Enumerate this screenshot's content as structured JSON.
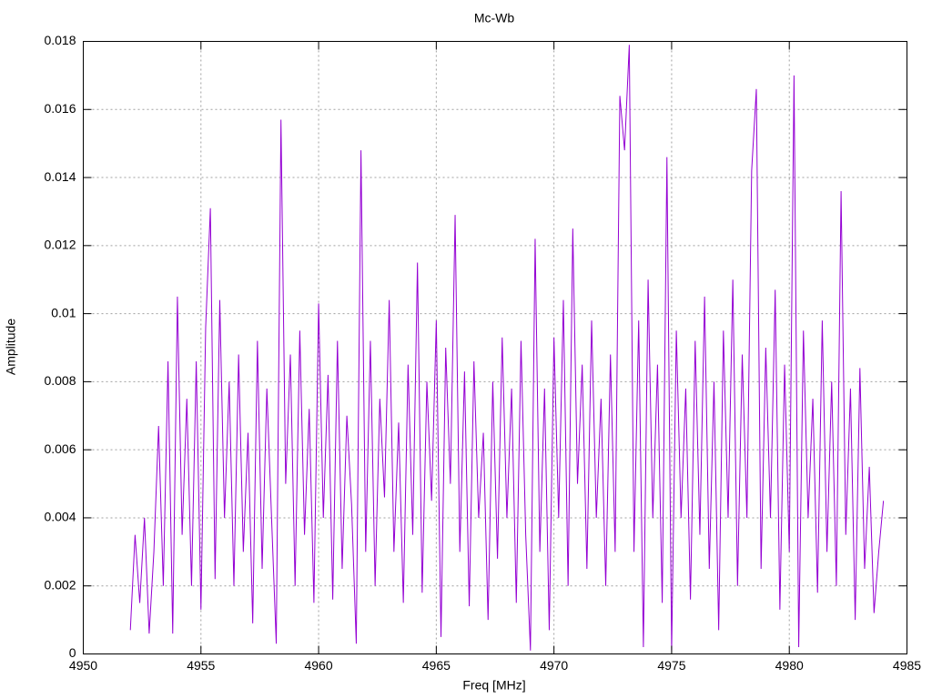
{
  "chart_data": {
    "type": "line",
    "title": "Mc-Wb",
    "x_label": "Freq [MHz]",
    "y_label": "Amplitude",
    "xlim": [
      4950,
      4985
    ],
    "xticks": [
      4950,
      4955,
      4960,
      4965,
      4970,
      4975,
      4980,
      4985
    ],
    "ylim": [
      0,
      0.018
    ],
    "yticks": [
      0,
      0.002,
      0.004,
      0.006,
      0.008,
      0.01,
      0.012,
      0.014,
      0.016,
      0.018
    ],
    "grid": true,
    "x": [
      4952.0,
      4952.2,
      4952.4,
      4952.6,
      4952.8,
      4953.0,
      4953.2,
      4953.4,
      4953.6,
      4953.8,
      4954.0,
      4954.2,
      4954.4,
      4954.6,
      4954.8,
      4955.0,
      4955.2,
      4955.4,
      4955.6,
      4955.8,
      4956.0,
      4956.2,
      4956.4,
      4956.6,
      4956.8,
      4957.0,
      4957.2,
      4957.4,
      4957.6,
      4957.8,
      4958.0,
      4958.2,
      4958.4,
      4958.6,
      4958.8,
      4959.0,
      4959.2,
      4959.4,
      4959.6,
      4959.8,
      4960.0,
      4960.2,
      4960.4,
      4960.6,
      4960.8,
      4961.0,
      4961.2,
      4961.4,
      4961.6,
      4961.8,
      4962.0,
      4962.2,
      4962.4,
      4962.6,
      4962.8,
      4963.0,
      4963.2,
      4963.4,
      4963.6,
      4963.8,
      4964.0,
      4964.2,
      4964.4,
      4964.6,
      4964.8,
      4965.0,
      4965.2,
      4965.4,
      4965.6,
      4965.8,
      4966.0,
      4966.2,
      4966.4,
      4966.6,
      4966.8,
      4967.0,
      4967.2,
      4967.4,
      4967.6,
      4967.8,
      4968.0,
      4968.2,
      4968.4,
      4968.6,
      4968.8,
      4969.0,
      4969.2,
      4969.4,
      4969.6,
      4969.8,
      4970.0,
      4970.2,
      4970.4,
      4970.6,
      4970.8,
      4971.0,
      4971.2,
      4971.4,
      4971.6,
      4971.8,
      4972.0,
      4972.2,
      4972.4,
      4972.6,
      4972.8,
      4973.0,
      4973.2,
      4973.4,
      4973.6,
      4973.8,
      4974.0,
      4974.2,
      4974.4,
      4974.6,
      4974.8,
      4975.0,
      4975.2,
      4975.4,
      4975.6,
      4975.8,
      4976.0,
      4976.2,
      4976.4,
      4976.6,
      4976.8,
      4977.0,
      4977.2,
      4977.4,
      4977.6,
      4977.8,
      4978.0,
      4978.2,
      4978.4,
      4978.6,
      4978.8,
      4979.0,
      4979.2,
      4979.4,
      4979.6,
      4979.8,
      4980.0,
      4980.2,
      4980.4,
      4980.6,
      4980.8,
      4981.0,
      4981.2,
      4981.4,
      4981.6,
      4981.8,
      4982.0,
      4982.2,
      4982.4,
      4982.6,
      4982.8,
      4983.0,
      4983.2,
      4983.4,
      4983.6,
      4983.8,
      4984.0
    ],
    "series": [
      {
        "color": "#9400d3",
        "values": [
          0.0007,
          0.0035,
          0.0015,
          0.004,
          0.0006,
          0.003,
          0.0067,
          0.002,
          0.0086,
          0.0006,
          0.0105,
          0.0035,
          0.0075,
          0.002,
          0.0086,
          0.0013,
          0.0096,
          0.0131,
          0.0022,
          0.0104,
          0.004,
          0.008,
          0.002,
          0.0088,
          0.003,
          0.0065,
          0.0009,
          0.0092,
          0.0025,
          0.0078,
          0.004,
          0.0003,
          0.0157,
          0.005,
          0.0088,
          0.002,
          0.0095,
          0.0035,
          0.0072,
          0.0015,
          0.0103,
          0.004,
          0.0082,
          0.0016,
          0.0092,
          0.0025,
          0.007,
          0.0044,
          0.0003,
          0.0148,
          0.003,
          0.0092,
          0.002,
          0.0075,
          0.0046,
          0.0104,
          0.003,
          0.0068,
          0.0015,
          0.0085,
          0.0035,
          0.0115,
          0.0018,
          0.008,
          0.0045,
          0.0098,
          0.0005,
          0.009,
          0.005,
          0.0129,
          0.003,
          0.0083,
          0.0014,
          0.0086,
          0.004,
          0.0065,
          0.001,
          0.008,
          0.0028,
          0.0093,
          0.004,
          0.0078,
          0.0015,
          0.0092,
          0.0035,
          0.0001,
          0.0122,
          0.003,
          0.0078,
          0.0007,
          0.0093,
          0.004,
          0.0104,
          0.002,
          0.0125,
          0.005,
          0.0085,
          0.0025,
          0.0098,
          0.004,
          0.0075,
          0.002,
          0.0088,
          0.003,
          0.0164,
          0.0148,
          0.0179,
          0.003,
          0.0098,
          0.0002,
          0.011,
          0.004,
          0.0085,
          0.0015,
          0.0146,
          0.0001,
          0.0095,
          0.004,
          0.0078,
          0.0016,
          0.0092,
          0.0035,
          0.0105,
          0.0025,
          0.008,
          0.0007,
          0.0095,
          0.004,
          0.011,
          0.002,
          0.0088,
          0.004,
          0.0142,
          0.0166,
          0.0025,
          0.009,
          0.004,
          0.0107,
          0.0013,
          0.0085,
          0.003,
          0.017,
          0.0002,
          0.0095,
          0.004,
          0.0075,
          0.0018,
          0.0098,
          0.003,
          0.008,
          0.002,
          0.0136,
          0.0035,
          0.0078,
          0.001,
          0.0084,
          0.0025,
          0.0055,
          0.0012,
          0.003,
          0.0045
        ]
      }
    ]
  }
}
